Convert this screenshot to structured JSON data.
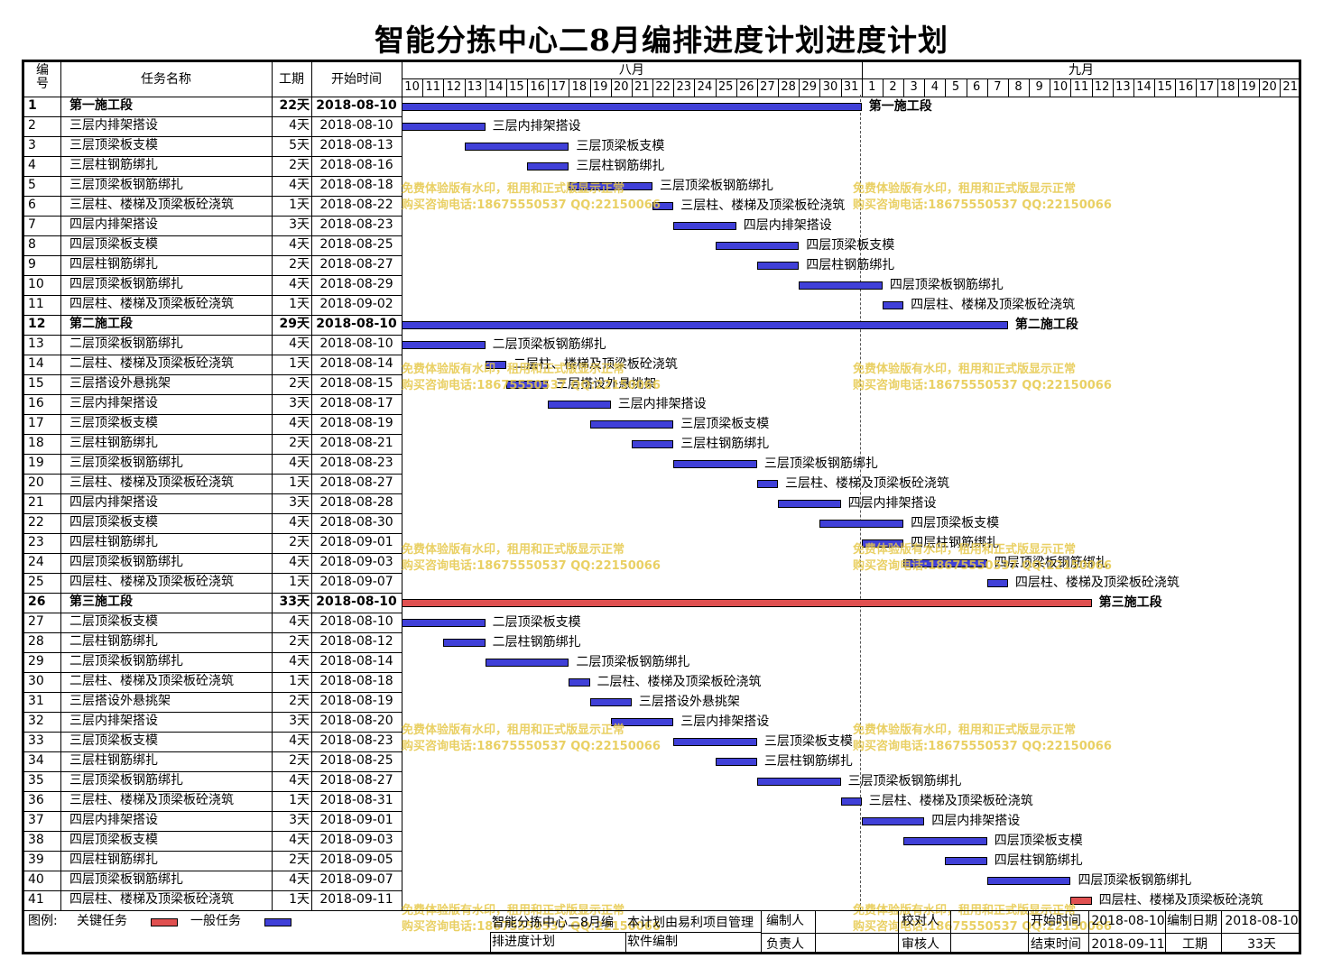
{
  "title": "智能分拣中心二8月编排进度计划进度计划",
  "headers": {
    "id": "编号",
    "name": "任务名称",
    "duration": "工期",
    "start": "开始时间"
  },
  "months": [
    "八月",
    "九月"
  ],
  "days": [
    "10",
    "11",
    "12",
    "13",
    "14",
    "15",
    "16",
    "17",
    "18",
    "19",
    "20",
    "21",
    "22",
    "23",
    "24",
    "25",
    "26",
    "27",
    "28",
    "29",
    "30",
    "31",
    "1",
    "2",
    "3",
    "4",
    "5",
    "6",
    "7",
    "8",
    "9",
    "10",
    "11",
    "12",
    "13",
    "14",
    "15",
    "16",
    "17",
    "18",
    "19",
    "20",
    "21"
  ],
  "tasks": [
    {
      "id": "1",
      "name": "第一施工段",
      "dur": "22天",
      "start": "2018-08-10",
      "s": 0,
      "d": 22,
      "type": "summary"
    },
    {
      "id": "2",
      "name": "三层内排架搭设",
      "dur": "4天",
      "start": "2018-08-10",
      "s": 0,
      "d": 4,
      "type": "normal"
    },
    {
      "id": "3",
      "name": "三层顶梁板支模",
      "dur": "5天",
      "start": "2018-08-13",
      "s": 3,
      "d": 5,
      "type": "normal"
    },
    {
      "id": "4",
      "name": "三层柱钢筋绑扎",
      "dur": "2天",
      "start": "2018-08-16",
      "s": 6,
      "d": 2,
      "type": "normal"
    },
    {
      "id": "5",
      "name": "三层顶梁板钢筋绑扎",
      "dur": "4天",
      "start": "2018-08-18",
      "s": 8,
      "d": 4,
      "type": "normal"
    },
    {
      "id": "6",
      "name": "三层柱、楼梯及顶梁板砼浇筑",
      "dur": "1天",
      "start": "2018-08-22",
      "s": 12,
      "d": 1,
      "type": "normal"
    },
    {
      "id": "7",
      "name": "四层内排架搭设",
      "dur": "3天",
      "start": "2018-08-23",
      "s": 13,
      "d": 3,
      "type": "normal"
    },
    {
      "id": "8",
      "name": "四层顶梁板支模",
      "dur": "4天",
      "start": "2018-08-25",
      "s": 15,
      "d": 4,
      "type": "normal"
    },
    {
      "id": "9",
      "name": "四层柱钢筋绑扎",
      "dur": "2天",
      "start": "2018-08-27",
      "s": 17,
      "d": 2,
      "type": "normal"
    },
    {
      "id": "10",
      "name": "四层顶梁板钢筋绑扎",
      "dur": "4天",
      "start": "2018-08-29",
      "s": 19,
      "d": 4,
      "type": "normal"
    },
    {
      "id": "11",
      "name": "四层柱、楼梯及顶梁板砼浇筑",
      "dur": "1天",
      "start": "2018-09-02",
      "s": 23,
      "d": 1,
      "type": "normal"
    },
    {
      "id": "12",
      "name": "第二施工段",
      "dur": "29天",
      "start": "2018-08-10",
      "s": 0,
      "d": 29,
      "type": "summary"
    },
    {
      "id": "13",
      "name": "二层顶梁板钢筋绑扎",
      "dur": "4天",
      "start": "2018-08-10",
      "s": 0,
      "d": 4,
      "type": "normal"
    },
    {
      "id": "14",
      "name": "二层柱、楼梯及顶梁板砼浇筑",
      "dur": "1天",
      "start": "2018-08-14",
      "s": 4,
      "d": 1,
      "type": "normal"
    },
    {
      "id": "15",
      "name": "三层搭设外悬挑架",
      "dur": "2天",
      "start": "2018-08-15",
      "s": 5,
      "d": 2,
      "type": "normal"
    },
    {
      "id": "16",
      "name": "三层内排架搭设",
      "dur": "3天",
      "start": "2018-08-17",
      "s": 7,
      "d": 3,
      "type": "normal"
    },
    {
      "id": "17",
      "name": "三层顶梁板支模",
      "dur": "4天",
      "start": "2018-08-19",
      "s": 9,
      "d": 4,
      "type": "normal"
    },
    {
      "id": "18",
      "name": "三层柱钢筋绑扎",
      "dur": "2天",
      "start": "2018-08-21",
      "s": 11,
      "d": 2,
      "type": "normal"
    },
    {
      "id": "19",
      "name": "三层顶梁板钢筋绑扎",
      "dur": "4天",
      "start": "2018-08-23",
      "s": 13,
      "d": 4,
      "type": "normal"
    },
    {
      "id": "20",
      "name": "三层柱、楼梯及顶梁板砼浇筑",
      "dur": "1天",
      "start": "2018-08-27",
      "s": 17,
      "d": 1,
      "type": "normal"
    },
    {
      "id": "21",
      "name": "四层内排架搭设",
      "dur": "3天",
      "start": "2018-08-28",
      "s": 18,
      "d": 3,
      "type": "normal"
    },
    {
      "id": "22",
      "name": "四层顶梁板支模",
      "dur": "4天",
      "start": "2018-08-30",
      "s": 20,
      "d": 4,
      "type": "normal"
    },
    {
      "id": "23",
      "name": "四层柱钢筋绑扎",
      "dur": "2天",
      "start": "2018-09-01",
      "s": 22,
      "d": 2,
      "type": "normal"
    },
    {
      "id": "24",
      "name": "四层顶梁板钢筋绑扎",
      "dur": "4天",
      "start": "2018-09-03",
      "s": 24,
      "d": 4,
      "type": "normal"
    },
    {
      "id": "25",
      "name": "四层柱、楼梯及顶梁板砼浇筑",
      "dur": "1天",
      "start": "2018-09-07",
      "s": 28,
      "d": 1,
      "type": "normal"
    },
    {
      "id": "26",
      "name": "第三施工段",
      "dur": "33天",
      "start": "2018-08-10",
      "s": 0,
      "d": 33,
      "type": "critical-summary"
    },
    {
      "id": "27",
      "name": "二层顶梁板支模",
      "dur": "4天",
      "start": "2018-08-10",
      "s": 0,
      "d": 4,
      "type": "normal"
    },
    {
      "id": "28",
      "name": "二层柱钢筋绑扎",
      "dur": "2天",
      "start": "2018-08-12",
      "s": 2,
      "d": 2,
      "type": "normal"
    },
    {
      "id": "29",
      "name": "二层顶梁板钢筋绑扎",
      "dur": "4天",
      "start": "2018-08-14",
      "s": 4,
      "d": 4,
      "type": "normal"
    },
    {
      "id": "30",
      "name": "二层柱、楼梯及顶梁板砼浇筑",
      "dur": "1天",
      "start": "2018-08-18",
      "s": 8,
      "d": 1,
      "type": "normal"
    },
    {
      "id": "31",
      "name": "三层搭设外悬挑架",
      "dur": "2天",
      "start": "2018-08-19",
      "s": 9,
      "d": 2,
      "type": "normal"
    },
    {
      "id": "32",
      "name": "三层内排架搭设",
      "dur": "3天",
      "start": "2018-08-20",
      "s": 10,
      "d": 3,
      "type": "normal"
    },
    {
      "id": "33",
      "name": "三层顶梁板支模",
      "dur": "4天",
      "start": "2018-08-23",
      "s": 13,
      "d": 4,
      "type": "normal"
    },
    {
      "id": "34",
      "name": "三层柱钢筋绑扎",
      "dur": "2天",
      "start": "2018-08-25",
      "s": 15,
      "d": 2,
      "type": "normal"
    },
    {
      "id": "35",
      "name": "三层顶梁板钢筋绑扎",
      "dur": "4天",
      "start": "2018-08-27",
      "s": 17,
      "d": 4,
      "type": "normal"
    },
    {
      "id": "36",
      "name": "三层柱、楼梯及顶梁板砼浇筑",
      "dur": "1天",
      "start": "2018-08-31",
      "s": 21,
      "d": 1,
      "type": "normal"
    },
    {
      "id": "37",
      "name": "四层内排架搭设",
      "dur": "3天",
      "start": "2018-09-01",
      "s": 22,
      "d": 3,
      "type": "normal"
    },
    {
      "id": "38",
      "name": "四层顶梁板支模",
      "dur": "4天",
      "start": "2018-09-03",
      "s": 24,
      "d": 4,
      "type": "normal"
    },
    {
      "id": "39",
      "name": "四层柱钢筋绑扎",
      "dur": "2天",
      "start": "2018-09-05",
      "s": 26,
      "d": 2,
      "type": "normal"
    },
    {
      "id": "40",
      "name": "四层顶梁板钢筋绑扎",
      "dur": "4天",
      "start": "2018-09-07",
      "s": 28,
      "d": 4,
      "type": "normal"
    },
    {
      "id": "41",
      "name": "四层柱、楼梯及顶梁板砼浇筑",
      "dur": "1天",
      "start": "2018-09-11",
      "s": 32,
      "d": 1,
      "type": "critical"
    }
  ],
  "legend": {
    "label": "图例:",
    "critical": "关键任务",
    "normal": "一般任务"
  },
  "footer": {
    "project": "智能分拣中心二8月编排进度计划",
    "note": "本计划由易利项目管理软件编制",
    "compiler_label": "编制人",
    "owner_label": "负责人",
    "checker_label": "校对人",
    "reviewer_label": "审核人",
    "start_label": "开始时间",
    "start_value": "2018-08-10",
    "end_label": "结束时间",
    "end_value": "2018-09-11",
    "date_label": "编制日期",
    "date_value": "2018-08-10",
    "duration_label": "工期",
    "duration_value": "33天"
  },
  "watermark": {
    "line1": "免费体验版有水印，租用和正式版显示正常",
    "line2": "购买咨询电话:18675550537 QQ:22150066"
  },
  "colors": {
    "normal_bar": "#4040d8",
    "critical_bar": "#e05050",
    "watermark": "#e6c84a"
  }
}
